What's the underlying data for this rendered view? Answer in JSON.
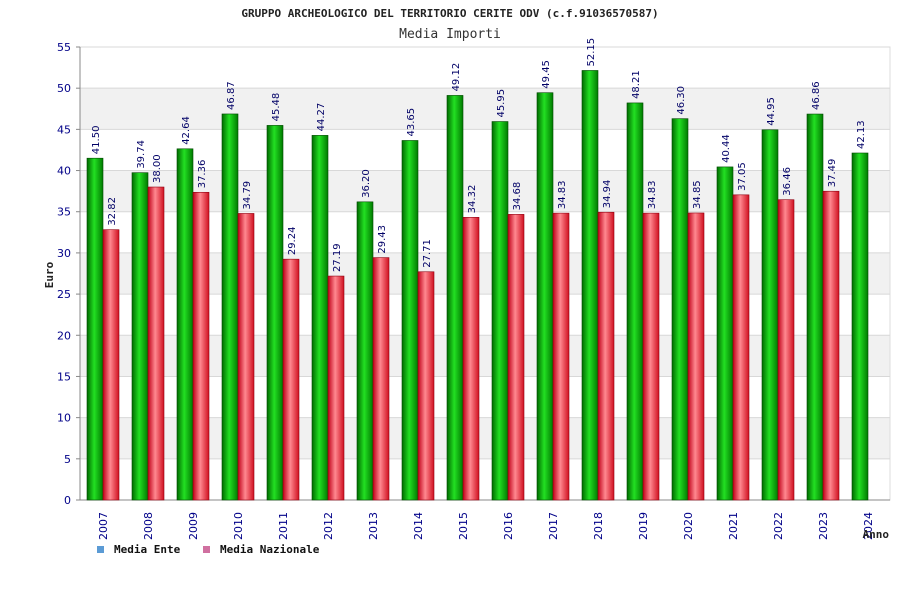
{
  "chart_data": {
    "type": "bar",
    "title": "GRUPPO ARCHEOLOGICO DEL TERRITORIO CERITE ODV (c.f.91036570587)",
    "subtitle": "Media Importi",
    "xlabel": "Anno",
    "ylabel": "Euro",
    "ylim": [
      0,
      55
    ],
    "yticks": [
      "0",
      "5",
      "10",
      "15",
      "20",
      "25",
      "30",
      "35",
      "40",
      "45",
      "50",
      "55"
    ],
    "categories": [
      "2007",
      "2008",
      "2009",
      "2010",
      "2011",
      "2012",
      "2013",
      "2014",
      "2015",
      "2016",
      "2017",
      "2018",
      "2019",
      "2020",
      "2021",
      "2022",
      "2023",
      "2024"
    ],
    "series": [
      {
        "name": "Media Ente",
        "color": "#00b000",
        "values": [
          41.5,
          39.74,
          42.64,
          46.87,
          45.48,
          44.27,
          36.2,
          43.65,
          49.12,
          45.95,
          49.45,
          52.15,
          48.21,
          46.3,
          40.44,
          44.95,
          46.86,
          42.13
        ],
        "labels": [
          "41.50",
          "39.74",
          "42.64",
          "46.87",
          "45.48",
          "44.27",
          "36.20",
          "43.65",
          "49.12",
          "45.95",
          "49.45",
          "52.15",
          "48.21",
          "46.30",
          "40.44",
          "44.95",
          "46.86",
          "42.13"
        ]
      },
      {
        "name": "Media Nazionale",
        "color": "#e01020",
        "values": [
          32.82,
          38.0,
          37.36,
          34.79,
          29.24,
          27.19,
          29.43,
          27.71,
          34.32,
          34.68,
          34.83,
          34.94,
          34.83,
          34.85,
          37.05,
          36.46,
          37.49,
          null
        ],
        "labels": [
          "32.82",
          "38.00",
          "37.36",
          "34.79",
          "29.24",
          "27.19",
          "29.43",
          "27.71",
          "34.32",
          "34.68",
          "34.83",
          "34.94",
          "34.83",
          "34.85",
          "37.05",
          "36.46",
          "37.49",
          ""
        ]
      }
    ],
    "grid": true,
    "legend": "bottom-left",
    "legend_colors": [
      "#5b9bd5",
      "#d070a0"
    ]
  }
}
